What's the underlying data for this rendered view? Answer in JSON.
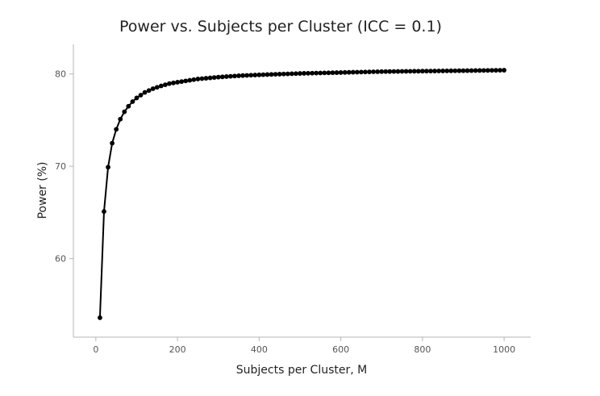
{
  "chart_data": {
    "type": "line",
    "title": "Power vs. Subjects per Cluster (ICC = 0.1)",
    "xlabel": "Subjects per Cluster, M",
    "ylabel": "Power (%)",
    "xlim": [
      -55,
      1065
    ],
    "ylim": [
      51.5,
      83.2
    ],
    "xticks": [
      0,
      200,
      400,
      600,
      800,
      1000
    ],
    "yticks": [
      60,
      70,
      80
    ],
    "x_start": 10,
    "x_step": 10,
    "x_end": 1000,
    "anchor_points": [
      [
        10,
        53.6
      ],
      [
        20,
        65.1
      ],
      [
        30,
        69.9
      ],
      [
        40,
        72.5
      ],
      [
        50,
        74.0
      ],
      [
        60,
        75.1
      ],
      [
        70,
        75.9
      ],
      [
        80,
        76.5
      ],
      [
        90,
        77.0
      ],
      [
        100,
        77.4
      ],
      [
        120,
        78.0
      ],
      [
        140,
        78.4
      ],
      [
        160,
        78.7
      ],
      [
        180,
        78.95
      ],
      [
        200,
        79.1
      ],
      [
        250,
        79.45
      ],
      [
        300,
        79.65
      ],
      [
        350,
        79.8
      ],
      [
        400,
        79.9
      ],
      [
        500,
        80.05
      ],
      [
        600,
        80.15
      ],
      [
        700,
        80.25
      ],
      [
        800,
        80.3
      ],
      [
        900,
        80.35
      ],
      [
        1000,
        80.4
      ]
    ],
    "line_color": "#000000",
    "marker_color": "#000000",
    "grid": false,
    "legend": "none"
  }
}
